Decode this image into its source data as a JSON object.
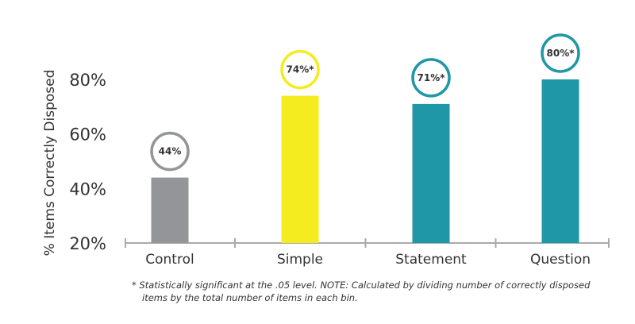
{
  "chart_data": {
    "type": "bar",
    "categories": [
      "Control",
      "Simple",
      "Statement",
      "Question"
    ],
    "values": [
      44,
      74,
      71,
      80
    ],
    "data_labels": [
      "44%",
      "74%*",
      "71%*",
      "80%*"
    ],
    "bar_colors": [
      "#939598",
      "#f5ec20",
      "#1f97a6",
      "#1f97a6"
    ],
    "ylabel": "% Items Correctly Disposed",
    "ylim": [
      20,
      85
    ],
    "yticks": [
      20,
      40,
      60,
      80
    ],
    "ytick_labels": [
      "20%",
      "40%",
      "60%",
      "80%"
    ],
    "grid": false,
    "legend": "none"
  },
  "footnote": {
    "line1": "* Statistically significant at the .05 level. NOTE: Calculated by dividing number of correctly disposed",
    "line2": "items by the total number of items in each bin."
  },
  "colors": {
    "axis": "#aaaaaa",
    "text": "#333333"
  }
}
